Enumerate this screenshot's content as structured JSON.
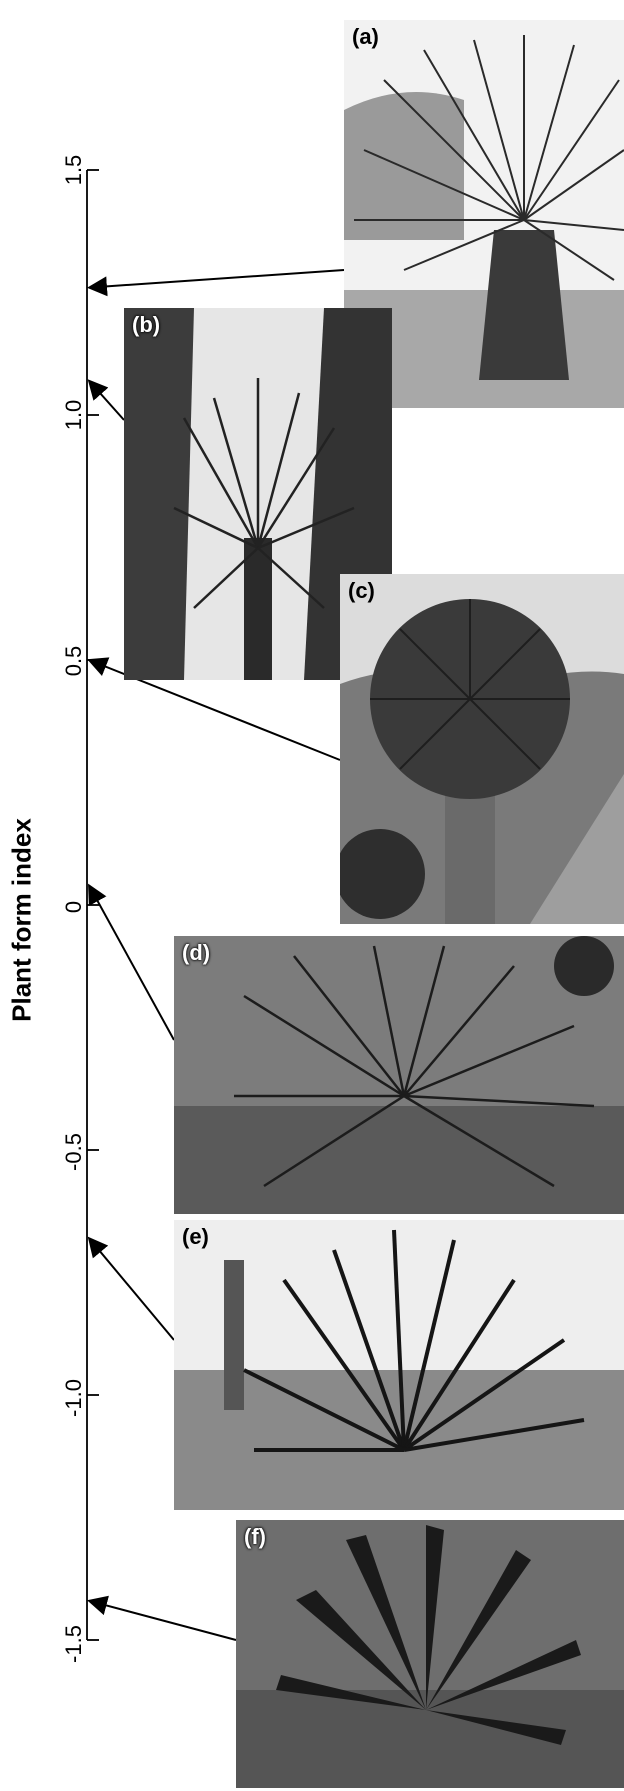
{
  "axis": {
    "title": "Plant form index",
    "ticks": [
      "1.5",
      "1.0",
      "0.5",
      "0",
      "-0.5",
      "-1.0",
      "-1.5"
    ],
    "tick_values": [
      1.5,
      1.0,
      0.5,
      0,
      -0.5,
      -1.0,
      -1.5
    ],
    "range": [
      -1.5,
      1.5
    ]
  },
  "panels": [
    {
      "label": "(a)",
      "index_value": 1.26
    },
    {
      "label": "(b)",
      "index_value": 1.07
    },
    {
      "label": "(c)",
      "index_value": 0.5
    },
    {
      "label": "(d)",
      "index_value": 0.04
    },
    {
      "label": "(e)",
      "index_value": -0.68
    },
    {
      "label": "(f)",
      "index_value": -1.42
    }
  ],
  "colors": {
    "axis": "#000000",
    "sky": "#e8e8e8",
    "plant": "#2c2c2c",
    "ground": "#8a8a8a"
  }
}
